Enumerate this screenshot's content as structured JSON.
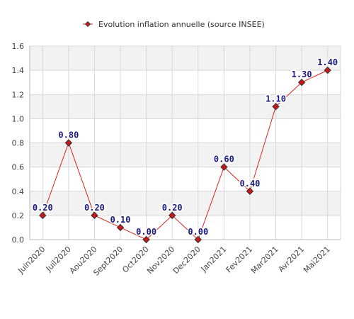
{
  "chart_data": {
    "type": "line",
    "categories": [
      "Juin2020",
      "Juil2020",
      "Aou2020",
      "Sept2020",
      "Oct2020",
      "Nov2020",
      "Dec2020",
      "Jan2021",
      "Fev2021",
      "Mar2021",
      "Avr2021",
      "Mai2021"
    ],
    "series": [
      {
        "name": "Evolution inflation annuelle (source INSEE)",
        "values": [
          0.2,
          0.8,
          0.2,
          0.1,
          0.0,
          0.2,
          0.0,
          0.6,
          0.4,
          1.1,
          1.3,
          1.4
        ],
        "labels": [
          "0.20",
          "0.80",
          "0.20",
          "0.10",
          "0.00",
          "0.20",
          "0.00",
          "0.60",
          "0.40",
          "1.10",
          "1.30",
          "1.40"
        ],
        "color": "#e02020",
        "marker_fill": "#c81818"
      }
    ],
    "y_ticks": [
      "0.0",
      "0.2",
      "0.4",
      "0.6",
      "0.8",
      "1.0",
      "1.2",
      "1.4",
      "1.6"
    ],
    "ylim": [
      0,
      1.6
    ],
    "grid": true,
    "legend_position": "top-center",
    "band_color": "#f2f2f2",
    "grid_color": "#d8d8d8"
  }
}
